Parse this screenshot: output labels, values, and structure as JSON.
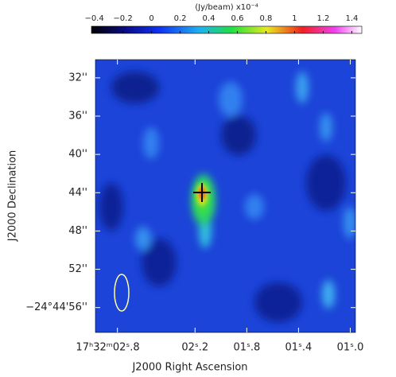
{
  "chart_data": {
    "type": "image",
    "xlabel": "J2000 Right Ascension",
    "ylabel": "J2000 Declination",
    "xlim": [
      2.97,
      0.96
    ],
    "xticks": [
      {
        "value": 2.8,
        "label": "17ʰ32ᵐ02ˢ.8"
      },
      {
        "value": 2.2,
        "label": "02ˢ.2"
      },
      {
        "value": 1.8,
        "label": "01ˢ.8"
      },
      {
        "value": 1.4,
        "label": "01ˢ.4"
      },
      {
        "value": 1.0,
        "label": "01ˢ.0"
      }
    ],
    "ylim": [
      30.1,
      58.6
    ],
    "yticks": [
      {
        "value": 32,
        "label": "32''"
      },
      {
        "value": 36,
        "label": "36''"
      },
      {
        "value": 40,
        "label": "40''"
      },
      {
        "value": 44,
        "label": "44''"
      },
      {
        "value": 48,
        "label": "48''"
      },
      {
        "value": 52,
        "label": "52''"
      },
      {
        "value": 56,
        "label": "−24°44'56''"
      }
    ],
    "colorbar": {
      "title": "(Jy/beam)  x10⁻⁴",
      "lim": [
        -0.42,
        1.47
      ],
      "ticks": [
        {
          "value": -0.4,
          "label": "−0.4"
        },
        {
          "value": -0.2,
          "label": "−0.2"
        },
        0,
        0.2,
        0.4,
        0.6,
        0.8,
        1,
        1.2,
        1.4
      ]
    }
  }
}
